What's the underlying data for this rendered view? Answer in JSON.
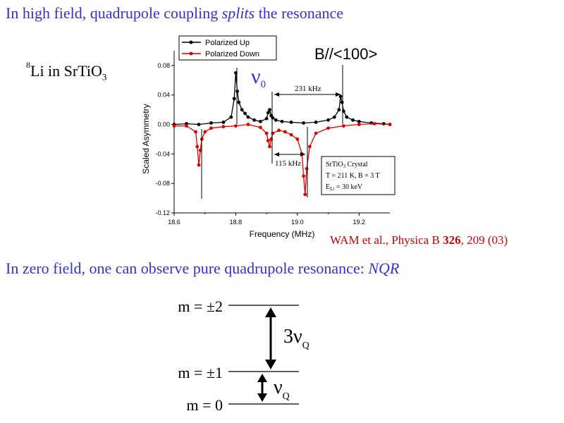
{
  "slide": {
    "heading_top_pre": "In high field, quadrupole coupling ",
    "heading_top_em": "splits",
    "heading_top_post": " the resonance",
    "sample_mass": "8",
    "sample_a": "Li in SrTiO",
    "sample_sub": "3",
    "citation_pre": "WAM et al., Physica B ",
    "citation_vol": "326",
    "citation_post": ", 209 (03)",
    "heading_bottom_pre": "In zero field, one can observe pure quadrupole resonance: ",
    "heading_bottom_em": "NQR"
  },
  "chart_data": {
    "type": "line",
    "xlabel": "Frequency (MHz)",
    "ylabel": "Scaled Asymmetry",
    "xlim": [
      18.6,
      19.3
    ],
    "ylim": [
      -0.12,
      0.1
    ],
    "xticks": [
      18.6,
      18.8,
      19.0,
      19.2
    ],
    "yticks": [
      -0.12,
      -0.08,
      -0.04,
      0.0,
      0.04,
      0.08
    ],
    "grid": false,
    "legend_position": "top-left",
    "series": [
      {
        "name": "Polarized Up",
        "color": "#000000",
        "x": [
          18.6,
          18.64,
          18.68,
          18.72,
          18.76,
          18.785,
          18.795,
          18.8,
          18.805,
          18.81,
          18.82,
          18.83,
          18.84,
          18.86,
          18.88,
          18.9,
          18.905,
          18.91,
          18.915,
          18.92,
          18.93,
          18.95,
          18.98,
          19.02,
          19.06,
          19.1,
          19.12,
          19.135,
          19.14,
          19.145,
          19.15,
          19.16,
          19.18,
          19.2,
          19.24,
          19.28,
          19.3
        ],
        "y": [
          0.0,
          0.001,
          0.0,
          0.002,
          0.003,
          0.01,
          0.035,
          0.07,
          0.045,
          0.03,
          0.02,
          0.015,
          0.01,
          0.006,
          0.004,
          0.008,
          0.016,
          0.02,
          0.012,
          0.009,
          0.006,
          0.004,
          0.003,
          0.002,
          0.003,
          0.006,
          0.01,
          0.02,
          0.038,
          0.03,
          0.018,
          0.01,
          0.006,
          0.004,
          0.002,
          0.001,
          0.0
        ]
      },
      {
        "name": "Polarized Down",
        "color": "#dd0000",
        "x": [
          18.6,
          18.64,
          18.67,
          18.675,
          18.68,
          18.685,
          18.69,
          18.7,
          18.72,
          18.76,
          18.8,
          18.84,
          18.88,
          18.9,
          18.905,
          18.91,
          18.915,
          18.92,
          18.94,
          18.96,
          18.98,
          19.0,
          19.015,
          19.02,
          19.025,
          19.03,
          19.04,
          19.06,
          19.1,
          19.15,
          19.2,
          19.25,
          19.3
        ],
        "y": [
          -0.002,
          -0.002,
          -0.01,
          -0.03,
          -0.055,
          -0.035,
          -0.02,
          -0.01,
          -0.005,
          -0.003,
          -0.002,
          0.0,
          -0.004,
          -0.012,
          -0.022,
          -0.03,
          -0.02,
          -0.012,
          -0.008,
          -0.01,
          -0.014,
          -0.02,
          -0.04,
          -0.07,
          -0.095,
          -0.06,
          -0.03,
          -0.012,
          -0.005,
          -0.002,
          0.0,
          0.001,
          0.0
        ]
      }
    ],
    "annotations": {
      "field": "B//<100>",
      "nu0": "ν",
      "nu0_sub": "0",
      "split1": "231 kHz",
      "split2": "115 kHz",
      "box_line1": "SrTiO",
      "box_line1_sub": "3",
      "box_line1_post": " Crystal",
      "box_line2": "T = 211 K, B = 3 T",
      "box_line3_pre": "E",
      "box_line3_sub": "Li",
      "box_line3_post": " = 30 keV"
    }
  },
  "levels": {
    "m2": "m = ±2",
    "m1": "m = ±1",
    "m0": "m = 0",
    "big_label": "3ν",
    "big_sub": "Q",
    "small_label": "ν",
    "small_sub": "Q"
  }
}
